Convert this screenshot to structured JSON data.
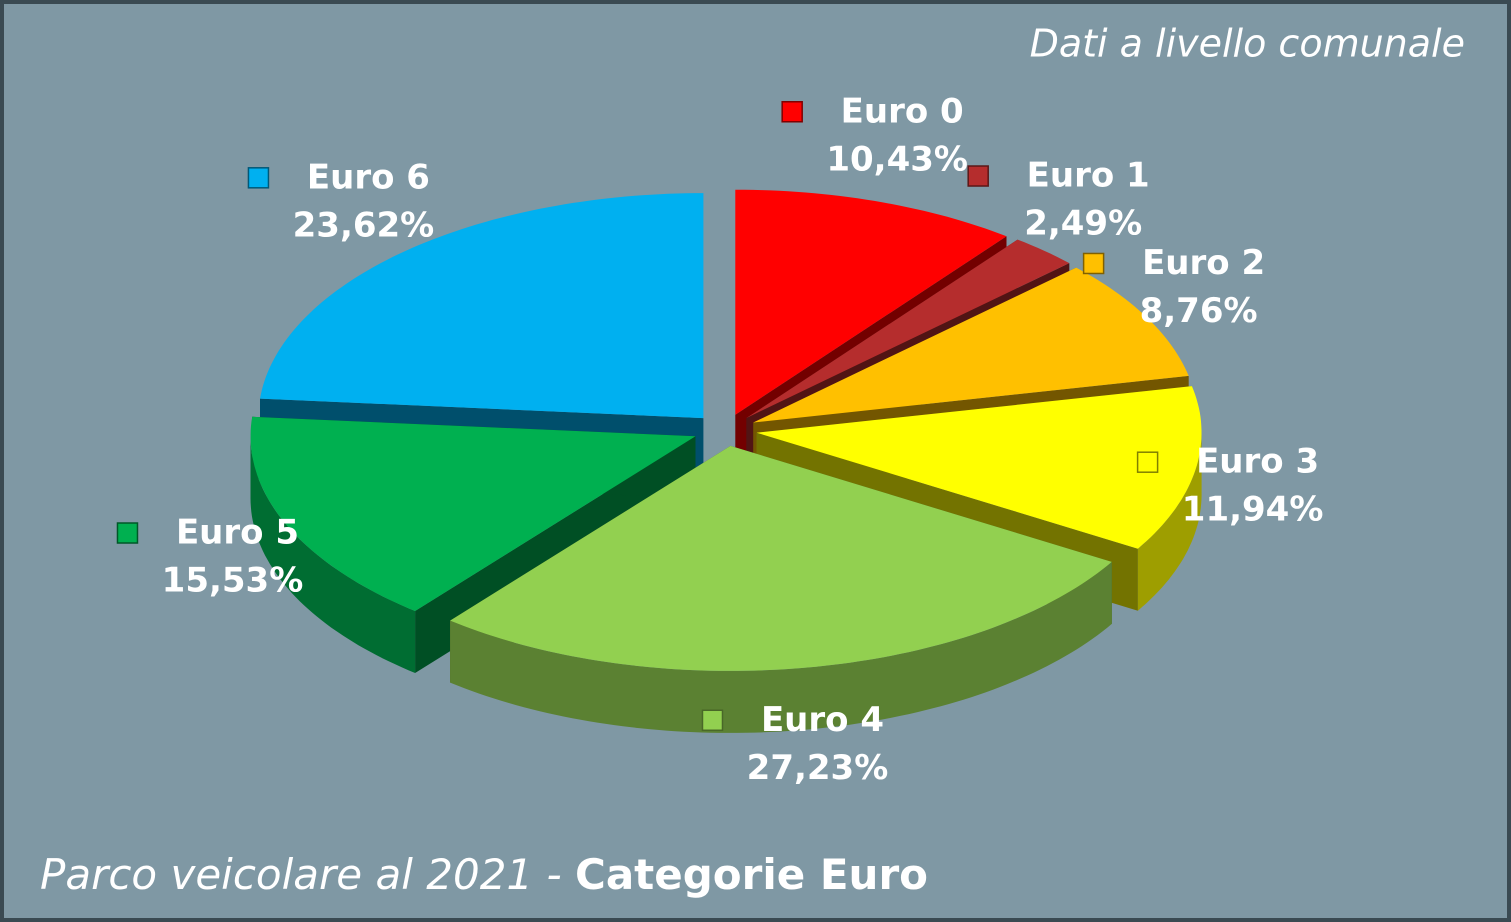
{
  "chart_data": {
    "type": "pie3d",
    "title": "Parco veicolare al 2021 -",
    "title_emphasis": "Categorie Euro",
    "annotation": "Dati a livello comunale",
    "categories": [
      "Euro 0",
      "Euro 1",
      "Euro 2",
      "Euro 3",
      "Euro 4",
      "Euro 5",
      "Euro 6"
    ],
    "values": [
      10.43,
      2.49,
      8.76,
      11.94,
      27.23,
      15.53,
      23.62
    ],
    "value_labels": [
      "10,43%",
      "2,49%",
      "8,76%",
      "11,94%",
      "27,23%",
      "15,53%",
      "23,62%"
    ],
    "colors": [
      "#ff0000",
      "#b52d2d",
      "#ffc000",
      "#ffff00",
      "#92d050",
      "#00b050",
      "#00b0f0"
    ]
  }
}
